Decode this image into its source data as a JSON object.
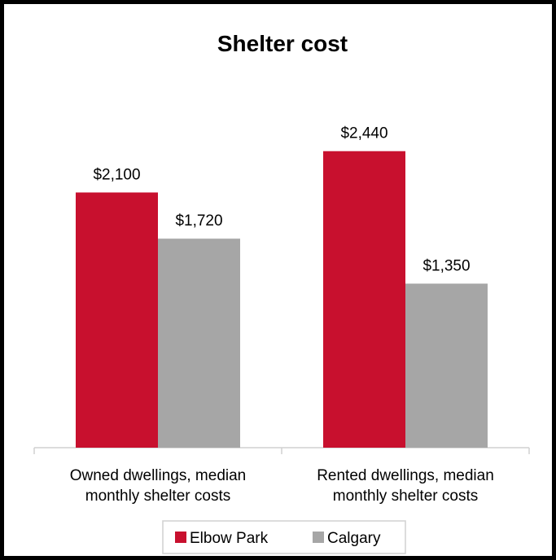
{
  "chart_data": {
    "type": "bar",
    "title": "Shelter cost",
    "categories": [
      [
        "Owned dwellings, median",
        "monthly shelter costs"
      ],
      [
        "Rented dwellings, median",
        "monthly shelter costs"
      ]
    ],
    "series": [
      {
        "name": "Elbow Park",
        "color": "#c8102e",
        "values": [
          2100,
          2440
        ],
        "labels": [
          "$2,100",
          "$2,440"
        ]
      },
      {
        "name": "Calgary",
        "color": "#a6a6a6",
        "values": [
          1720,
          1350
        ],
        "labels": [
          "$1,720",
          "$1,350"
        ]
      }
    ],
    "ylim": [
      0,
      2800
    ],
    "grid": false,
    "legend": "bottom",
    "xlabel": "",
    "ylabel": ""
  }
}
